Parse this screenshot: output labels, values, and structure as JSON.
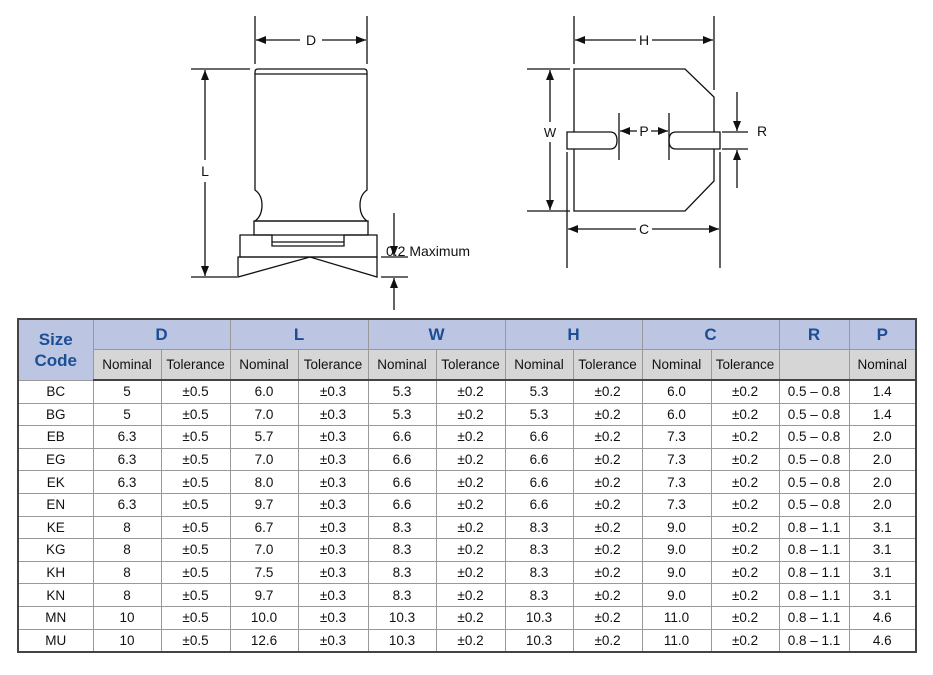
{
  "diagram": {
    "labels": {
      "D": "D",
      "L": "L",
      "H": "H",
      "W": "W",
      "P": "P",
      "R": "R",
      "C": "C",
      "max": "0.2 Maximum"
    }
  },
  "table": {
    "size_code_header": [
      "Size",
      "Code"
    ],
    "groups": [
      "D",
      "L",
      "W",
      "H",
      "C",
      "R",
      "P"
    ],
    "subheaders": [
      "Nominal",
      "Tolerance",
      "Nominal",
      "Tolerance",
      "Nominal",
      "Tolerance",
      "Nominal",
      "Tolerance",
      "Nominal",
      "Tolerance",
      "",
      "Nominal"
    ],
    "rows": [
      [
        "BC",
        "5",
        "±0.5",
        "6.0",
        "±0.3",
        "5.3",
        "±0.2",
        "5.3",
        "±0.2",
        "6.0",
        "±0.2",
        "0.5 – 0.8",
        "1.4"
      ],
      [
        "BG",
        "5",
        "±0.5",
        "7.0",
        "±0.3",
        "5.3",
        "±0.2",
        "5.3",
        "±0.2",
        "6.0",
        "±0.2",
        "0.5 – 0.8",
        "1.4"
      ],
      [
        "EB",
        "6.3",
        "±0.5",
        "5.7",
        "±0.3",
        "6.6",
        "±0.2",
        "6.6",
        "±0.2",
        "7.3",
        "±0.2",
        "0.5 – 0.8",
        "2.0"
      ],
      [
        "EG",
        "6.3",
        "±0.5",
        "7.0",
        "±0.3",
        "6.6",
        "±0.2",
        "6.6",
        "±0.2",
        "7.3",
        "±0.2",
        "0.5 – 0.8",
        "2.0"
      ],
      [
        "EK",
        "6.3",
        "±0.5",
        "8.0",
        "±0.3",
        "6.6",
        "±0.2",
        "6.6",
        "±0.2",
        "7.3",
        "±0.2",
        "0.5 – 0.8",
        "2.0"
      ],
      [
        "EN",
        "6.3",
        "±0.5",
        "9.7",
        "±0.3",
        "6.6",
        "±0.2",
        "6.6",
        "±0.2",
        "7.3",
        "±0.2",
        "0.5 – 0.8",
        "2.0"
      ],
      [
        "KE",
        "8",
        "±0.5",
        "6.7",
        "±0.3",
        "8.3",
        "±0.2",
        "8.3",
        "±0.2",
        "9.0",
        "±0.2",
        "0.8 – 1.1",
        "3.1"
      ],
      [
        "KG",
        "8",
        "±0.5",
        "7.0",
        "±0.3",
        "8.3",
        "±0.2",
        "8.3",
        "±0.2",
        "9.0",
        "±0.2",
        "0.8 – 1.1",
        "3.1"
      ],
      [
        "KH",
        "8",
        "±0.5",
        "7.5",
        "±0.3",
        "8.3",
        "±0.2",
        "8.3",
        "±0.2",
        "9.0",
        "±0.2",
        "0.8 – 1.1",
        "3.1"
      ],
      [
        "KN",
        "8",
        "±0.5",
        "9.7",
        "±0.3",
        "8.3",
        "±0.2",
        "8.3",
        "±0.2",
        "9.0",
        "±0.2",
        "0.8 – 1.1",
        "3.1"
      ],
      [
        "MN",
        "10",
        "±0.5",
        "10.0",
        "±0.3",
        "10.3",
        "±0.2",
        "10.3",
        "±0.2",
        "11.0",
        "±0.2",
        "0.8 – 1.1",
        "4.6"
      ],
      [
        "MU",
        "10",
        "±0.5",
        "12.6",
        "±0.3",
        "10.3",
        "±0.2",
        "10.3",
        "±0.2",
        "11.0",
        "±0.2",
        "0.8 – 1.1",
        "4.6"
      ]
    ]
  }
}
